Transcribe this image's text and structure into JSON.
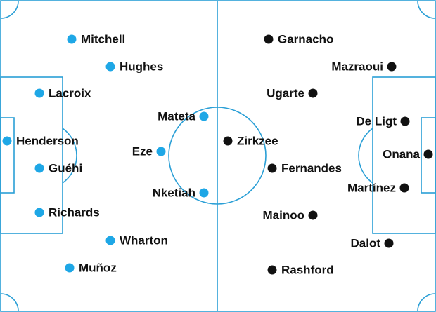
{
  "home": {
    "players": [
      "Mitchell",
      "Hughes",
      "Lacroix",
      "Henderson",
      "Guéhi",
      "Richards",
      "Wharton",
      "Muñoz",
      "Mateta",
      "Eze",
      "Nketiah"
    ]
  },
  "away": {
    "players": [
      "Garnacho",
      "Mazraoui",
      "Ugarte",
      "De Ligt",
      "Zirkzee",
      "Onana",
      "Fernandes",
      "Martínez",
      "Mainoo",
      "Dalot",
      "Rashford"
    ]
  }
}
